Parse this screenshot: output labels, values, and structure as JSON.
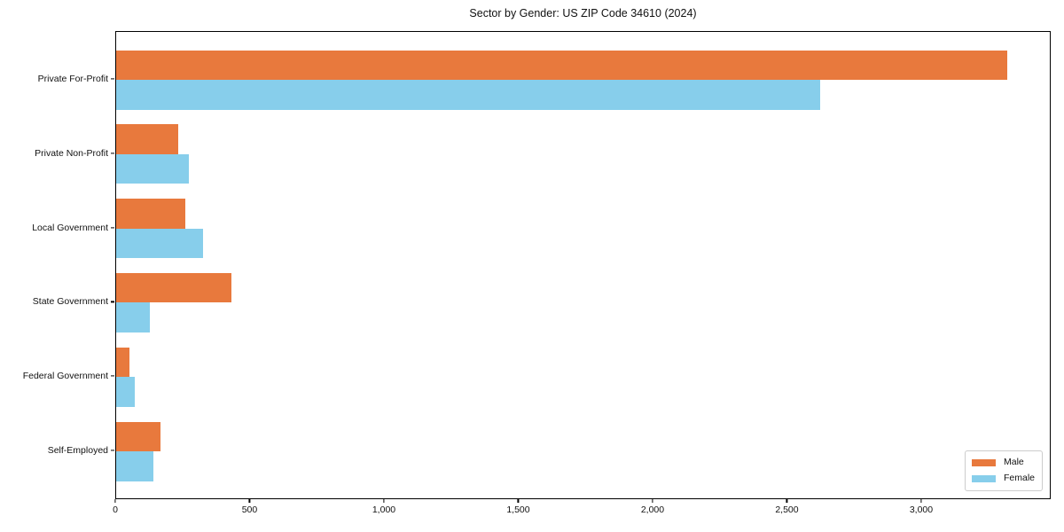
{
  "chart_data": {
    "type": "bar",
    "orientation": "horizontal",
    "title": "Sector by Gender: US ZIP Code 34610 (2024)",
    "categories": [
      "Private For-Profit",
      "Private Non-Profit",
      "Local Government",
      "State Government",
      "Federal Government",
      "Self-Employed"
    ],
    "series": [
      {
        "name": "Male",
        "color": "#e8793d",
        "values": [
          3316,
          231,
          259,
          430,
          51,
          166
        ]
      },
      {
        "name": "Female",
        "color": "#87ceeb",
        "values": [
          2619,
          271,
          323,
          127,
          68,
          137
        ]
      }
    ],
    "xlabel": "",
    "ylabel": "",
    "xlim": [
      0,
      3482
    ],
    "xticks": [
      0,
      500,
      1000,
      1500,
      2000,
      2500,
      3000
    ],
    "xtick_labels": [
      "0",
      "500",
      "1,000",
      "1,500",
      "2,000",
      "2,500",
      "3,000"
    ],
    "grid": false,
    "legend_position": "lower right"
  }
}
